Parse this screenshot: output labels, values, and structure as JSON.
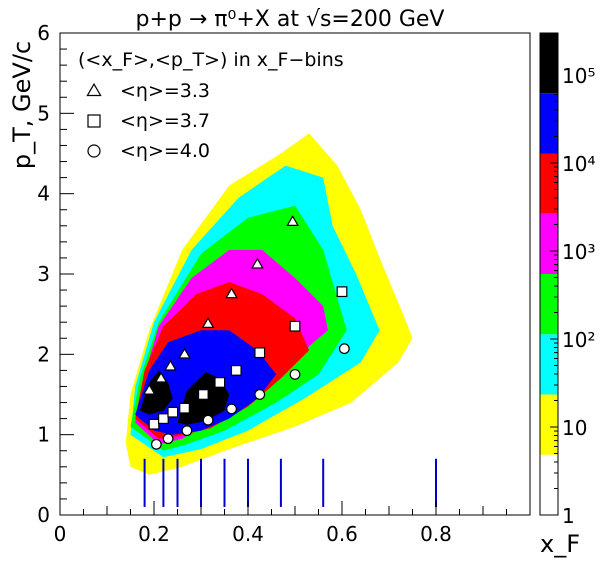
{
  "chart_data": {
    "type": "heatmap",
    "title": "p+p → π⁰+X at √s=200 GeV",
    "xlabel": "x_F",
    "ylabel": "p_T, GeV/c",
    "xlim": [
      0,
      1.0
    ],
    "ylim": [
      0,
      6
    ],
    "x_ticks": [
      "0",
      "0.2",
      "0.4",
      "0.6",
      "0.8"
    ],
    "y_ticks": [
      "0",
      "1",
      "2",
      "3",
      "4",
      "5",
      "6"
    ],
    "legend_title": "(<x_F>,<p_T>) in x_F−bins",
    "colorbar": {
      "scale": "log",
      "range": [
        1,
        300000
      ],
      "tick_labels": [
        "1",
        "10",
        "10²",
        "10³",
        "10⁴",
        "10⁵"
      ],
      "colors": [
        "#ffffff",
        "#ffff00",
        "#00ffff",
        "#00ff00",
        "#ff00ff",
        "#ff0000",
        "#0000ff",
        "#000000"
      ]
    },
    "density_contours": [
      {
        "level": 1,
        "color": "#ffff00",
        "outline": [
          [
            0.14,
            0.9
          ],
          [
            0.15,
            1.5
          ],
          [
            0.19,
            2.3
          ],
          [
            0.26,
            3.3
          ],
          [
            0.36,
            4.1
          ],
          [
            0.47,
            4.5
          ],
          [
            0.53,
            4.75
          ],
          [
            0.59,
            4.35
          ],
          [
            0.64,
            3.8
          ],
          [
            0.68,
            3.2
          ],
          [
            0.73,
            2.5
          ],
          [
            0.75,
            2.2
          ],
          [
            0.72,
            1.9
          ],
          [
            0.62,
            1.4
          ],
          [
            0.5,
            1.1
          ],
          [
            0.36,
            0.82
          ],
          [
            0.26,
            0.6
          ],
          [
            0.19,
            0.5
          ],
          [
            0.15,
            0.6
          ]
        ]
      },
      {
        "level": 2,
        "color": "#00ffff",
        "outline": [
          [
            0.15,
            1.0
          ],
          [
            0.16,
            1.6
          ],
          [
            0.2,
            2.4
          ],
          [
            0.28,
            3.3
          ],
          [
            0.38,
            3.95
          ],
          [
            0.48,
            4.35
          ],
          [
            0.56,
            4.2
          ],
          [
            0.58,
            3.6
          ],
          [
            0.63,
            3.0
          ],
          [
            0.68,
            2.3
          ],
          [
            0.64,
            1.9
          ],
          [
            0.52,
            1.45
          ],
          [
            0.4,
            1.05
          ],
          [
            0.3,
            0.82
          ],
          [
            0.22,
            0.72
          ]
        ]
      },
      {
        "level": 3,
        "color": "#00ff00",
        "outline": [
          [
            0.15,
            1.1
          ],
          [
            0.17,
            1.7
          ],
          [
            0.21,
            2.4
          ],
          [
            0.3,
            3.25
          ],
          [
            0.4,
            3.7
          ],
          [
            0.5,
            3.85
          ],
          [
            0.56,
            3.3
          ],
          [
            0.59,
            2.7
          ],
          [
            0.61,
            2.3
          ],
          [
            0.55,
            1.75
          ],
          [
            0.46,
            1.4
          ],
          [
            0.35,
            1.05
          ],
          [
            0.27,
            0.88
          ],
          [
            0.22,
            0.8
          ]
        ]
      },
      {
        "level": 4,
        "color": "#ff00ff",
        "outline": [
          [
            0.16,
            1.15
          ],
          [
            0.18,
            1.75
          ],
          [
            0.21,
            2.35
          ],
          [
            0.28,
            2.95
          ],
          [
            0.36,
            3.3
          ],
          [
            0.43,
            3.3
          ],
          [
            0.5,
            2.95
          ],
          [
            0.56,
            2.6
          ],
          [
            0.57,
            2.3
          ],
          [
            0.5,
            1.95
          ],
          [
            0.42,
            1.6
          ],
          [
            0.33,
            1.2
          ],
          [
            0.26,
            0.95
          ],
          [
            0.21,
            0.88
          ]
        ]
      },
      {
        "level": 5,
        "color": "#ff0000",
        "outline": [
          [
            0.16,
            1.2
          ],
          [
            0.18,
            1.8
          ],
          [
            0.22,
            2.35
          ],
          [
            0.29,
            2.75
          ],
          [
            0.36,
            2.9
          ],
          [
            0.43,
            2.75
          ],
          [
            0.5,
            2.45
          ],
          [
            0.53,
            2.05
          ],
          [
            0.47,
            1.7
          ],
          [
            0.4,
            1.35
          ],
          [
            0.32,
            1.08
          ],
          [
            0.25,
            0.98
          ],
          [
            0.21,
            0.95
          ]
        ]
      },
      {
        "level": 6,
        "color": "#0000ff",
        "outline": [
          [
            0.16,
            1.25
          ],
          [
            0.19,
            1.8
          ],
          [
            0.23,
            2.15
          ],
          [
            0.3,
            2.3
          ],
          [
            0.36,
            2.3
          ],
          [
            0.42,
            2.05
          ],
          [
            0.46,
            1.75
          ],
          [
            0.42,
            1.45
          ],
          [
            0.36,
            1.2
          ],
          [
            0.3,
            1.05
          ],
          [
            0.24,
            1.0
          ],
          [
            0.2,
            1.05
          ]
        ]
      },
      {
        "level": 7,
        "color": "#000000",
        "outline": [
          [
            0.17,
            1.3
          ],
          [
            0.19,
            1.65
          ],
          [
            0.21,
            1.8
          ],
          [
            0.23,
            1.65
          ],
          [
            0.24,
            1.45
          ],
          [
            0.22,
            1.3
          ],
          [
            0.19,
            1.25
          ]
        ]
      },
      {
        "level": 7,
        "color": "#000000",
        "outline": [
          [
            0.25,
            1.15
          ],
          [
            0.27,
            1.55
          ],
          [
            0.31,
            1.78
          ],
          [
            0.34,
            1.7
          ],
          [
            0.36,
            1.5
          ],
          [
            0.35,
            1.3
          ],
          [
            0.31,
            1.17
          ],
          [
            0.27,
            1.12
          ]
        ]
      }
    ],
    "series": [
      {
        "name": "<η>=3.3",
        "marker": "triangle",
        "x": [
          0.19,
          0.215,
          0.235,
          0.265,
          0.315,
          0.365,
          0.42,
          0.495
        ],
        "y": [
          1.55,
          1.7,
          1.85,
          2.0,
          2.38,
          2.75,
          3.12,
          3.65
        ]
      },
      {
        "name": "<η>=3.7",
        "marker": "square",
        "x": [
          0.2,
          0.22,
          0.24,
          0.265,
          0.305,
          0.34,
          0.375,
          0.425,
          0.5,
          0.6
        ],
        "y": [
          1.13,
          1.2,
          1.28,
          1.33,
          1.5,
          1.65,
          1.8,
          2.02,
          2.35,
          2.78
        ]
      },
      {
        "name": "<η>=4.0",
        "marker": "circle",
        "x": [
          0.205,
          0.23,
          0.27,
          0.315,
          0.365,
          0.425,
          0.5,
          0.605
        ],
        "y": [
          0.88,
          0.95,
          1.05,
          1.18,
          1.32,
          1.5,
          1.75,
          2.07
        ]
      }
    ],
    "bin_edges_xF": [
      0.18,
      0.22,
      0.25,
      0.3,
      0.35,
      0.4,
      0.47,
      0.56,
      0.8
    ],
    "grid": false,
    "legend_placement": "top-left"
  }
}
